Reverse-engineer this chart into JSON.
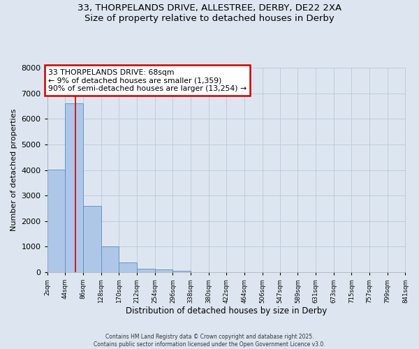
{
  "title_line1": "33, THORPELANDS DRIVE, ALLESTREE, DERBY, DE22 2XA",
  "title_line2": "Size of property relative to detached houses in Derby",
  "xlabel": "Distribution of detached houses by size in Derby",
  "ylabel": "Number of detached properties",
  "bar_edges": [
    2,
    44,
    86,
    128,
    170,
    212,
    254,
    296,
    338,
    380,
    422,
    464,
    506,
    547,
    589,
    631,
    673,
    715,
    757,
    799,
    841
  ],
  "bar_heights": [
    4020,
    6620,
    2600,
    1000,
    380,
    150,
    100,
    60,
    0,
    0,
    0,
    0,
    0,
    0,
    0,
    0,
    0,
    0,
    0,
    0
  ],
  "bar_color": "#aec6e8",
  "bar_edge_color": "#5a8fc0",
  "background_color": "#dde6f0",
  "grid_color": "#b8c8d8",
  "vline_x": 68,
  "vline_color": "#cc0000",
  "annotation_line1": "33 THORPELANDS DRIVE: 68sqm",
  "annotation_line2": "← 9% of detached houses are smaller (1,359)",
  "annotation_line3": "90% of semi-detached houses are larger (13,254) →",
  "annotation_box_color": "#cc0000",
  "annotation_bg": "#ffffff",
  "ylim": [
    0,
    8000
  ],
  "tick_labels": [
    "2sqm",
    "44sqm",
    "86sqm",
    "128sqm",
    "170sqm",
    "212sqm",
    "254sqm",
    "296sqm",
    "338sqm",
    "380sqm",
    "422sqm",
    "464sqm",
    "506sqm",
    "547sqm",
    "589sqm",
    "631sqm",
    "673sqm",
    "715sqm",
    "757sqm",
    "799sqm",
    "841sqm"
  ],
  "footer_line1": "Contains HM Land Registry data © Crown copyright and database right 2025.",
  "footer_line2": "Contains public sector information licensed under the Open Government Licence v3.0."
}
